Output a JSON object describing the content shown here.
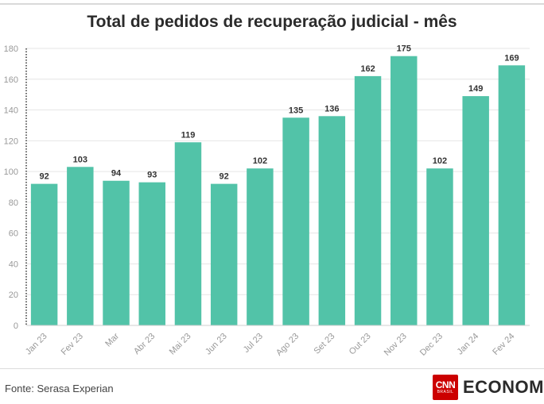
{
  "header": {
    "title": "Total de pedidos de recuperação judicial - mês"
  },
  "footer": {
    "source": "Fonte: Serasa Experian"
  },
  "brand": {
    "logo_top": "CNN",
    "logo_bottom": "BRASIL",
    "name": "ECONOMIA"
  },
  "colors": {
    "bar": "#52c3a8",
    "grid": "#e6e6e6",
    "axis_text": "#999999",
    "label": "#333333"
  },
  "chart_data": {
    "type": "bar",
    "title": "Total de pedidos de recuperação judicial - mês",
    "categories": [
      "Jan 23",
      "Fev 23",
      "Mar",
      "Abr 23",
      "Mai 23",
      "Jun 23",
      "Jul 23",
      "Ago 23",
      "Set 23",
      "Out 23",
      "Nov 23",
      "Dec 23",
      "Jan 24",
      "Fev 24"
    ],
    "values": [
      92,
      103,
      94,
      93,
      119,
      92,
      102,
      135,
      136,
      162,
      175,
      102,
      149,
      169
    ],
    "ylim": [
      0,
      180
    ],
    "yticks": [
      0,
      20,
      40,
      60,
      80,
      100,
      120,
      140,
      160,
      180
    ],
    "xlabel": "",
    "ylabel": "",
    "grid": true,
    "legend": "none"
  }
}
